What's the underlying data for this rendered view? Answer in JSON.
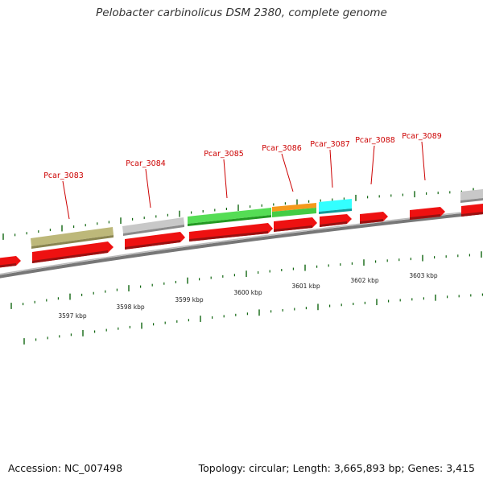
{
  "title": "Pelobacter carbinolicus DSM 2380, complete genome",
  "footer": {
    "accession": "Accession: NC_007498",
    "summary": "Topology: circular; Length: 3,665,893 bp; Genes: 3,415"
  },
  "colors": {
    "gene_forward": "#ee1111",
    "cog_olive": "#bdb87a",
    "cog_grey": "#c4c4c4",
    "cog_green": "#44cc44",
    "cog_orange": "#f59a1c",
    "cog_cyan": "#22ffff",
    "backbone": "#888888",
    "tick": "#116611",
    "label": "#cc0000"
  },
  "scale_labels": [
    "3597 kbp",
    "3598 kbp",
    "3599 kbp",
    "3600 kbp",
    "3601 kbp",
    "3602 kbp",
    "3603 kbp"
  ],
  "genes": [
    {
      "id": "Pcar_3083",
      "cog": [
        "olive"
      ]
    },
    {
      "id": "Pcar_3084",
      "cog": [
        "grey"
      ]
    },
    {
      "id": "Pcar_3085",
      "cog": [
        "green"
      ]
    },
    {
      "id": "Pcar_3086",
      "cog": [
        "orange",
        "green"
      ]
    },
    {
      "id": "Pcar_3087",
      "cog": [
        "cyan"
      ]
    },
    {
      "id": "Pcar_3088",
      "cog": []
    },
    {
      "id": "Pcar_3089",
      "cog": []
    }
  ]
}
